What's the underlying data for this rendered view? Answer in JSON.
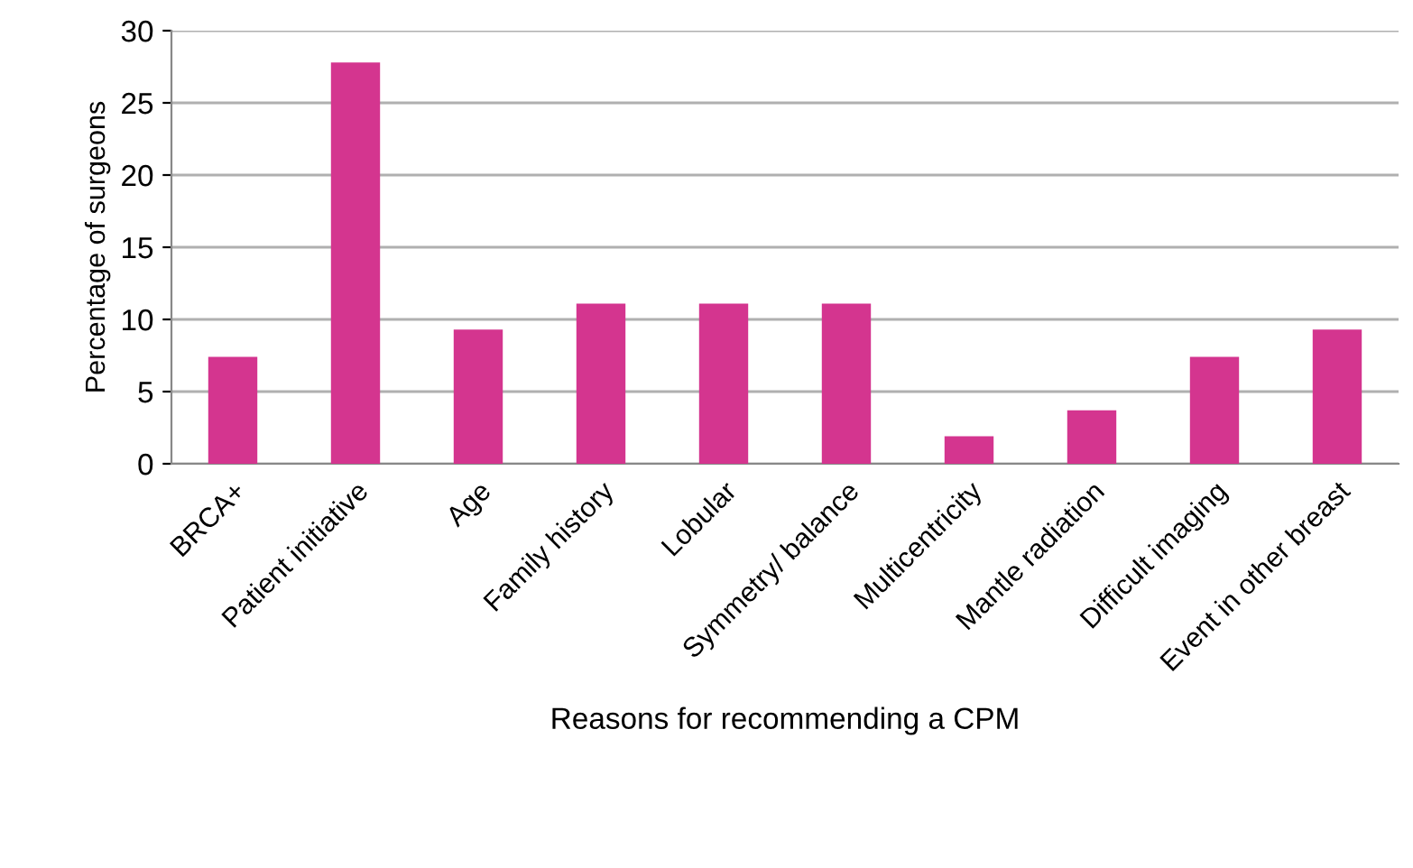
{
  "chart_data": {
    "type": "bar",
    "xlabel": "Reasons for recommending a CPM",
    "ylabel": "Percentage of surgeons",
    "categories": [
      "BRCA+",
      "Patient initiative",
      "Age",
      "Family history",
      "Lobular",
      "Symmetry/ balance",
      "Multicentricity",
      "Mantle radiation",
      "Difficult imaging",
      "Event in other breast"
    ],
    "values": [
      7.4,
      27.8,
      9.3,
      11.1,
      11.1,
      11.1,
      1.9,
      3.7,
      7.4,
      9.3
    ],
    "color": "#d4358f",
    "ylim": [
      0,
      30
    ],
    "yticks": [
      0,
      5,
      10,
      15,
      20,
      25,
      30
    ],
    "grid": "y",
    "legend": false
  }
}
